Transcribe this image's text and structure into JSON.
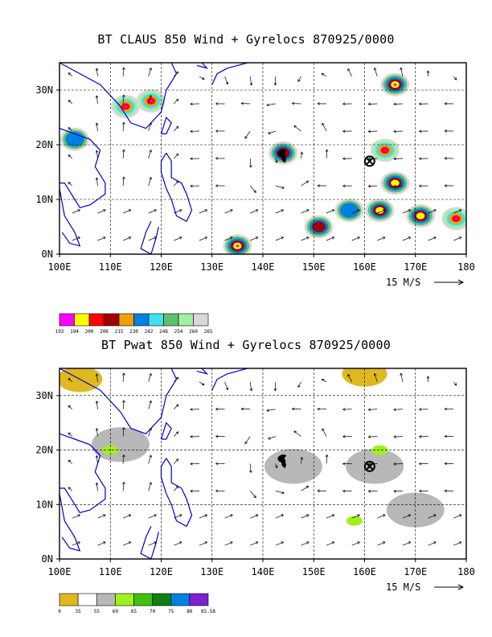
{
  "chart_data": [
    {
      "type": "heatmap",
      "title": "BT CLAUS 850 Wind + Gyrelocs 870925/0000",
      "x_ticks": [
        "100E",
        "110E",
        "120E",
        "130E",
        "140E",
        "150E",
        "160E",
        "170E",
        "180"
      ],
      "y_ticks": [
        "0N",
        "10N",
        "20N",
        "30N"
      ],
      "xlim": [
        100,
        180
      ],
      "ylim": [
        0,
        35
      ],
      "grid": true,
      "vector_scale_label": "15 M/S",
      "gyre_locations": [
        {
          "symbol": "cyclone",
          "lon": 144,
          "lat": 18
        },
        {
          "symbol": "cross-circle",
          "lon": 161,
          "lat": 17
        }
      ],
      "colorbar": {
        "labels": [
          "193",
          "194",
          "200",
          "206",
          "215",
          "230",
          "242",
          "248",
          "254",
          "260",
          "265"
        ],
        "colors": [
          "#ff00ff",
          "#ffff00",
          "#ff0000",
          "#a00000",
          "#f0a000",
          "#0080e0",
          "#40e0f0",
          "#60c070",
          "#a0f0a0",
          "#d8d8d8"
        ]
      },
      "regions": [
        {
          "lon": 103,
          "lat": 21,
          "level": 2
        },
        {
          "lon": 144,
          "lat": 18.5,
          "level": 3
        },
        {
          "lon": 164,
          "lat": 19,
          "level": 6
        },
        {
          "lon": 157,
          "lat": 8,
          "level": 2
        },
        {
          "lon": 163,
          "lat": 8,
          "level": 4
        },
        {
          "lon": 171,
          "lat": 7,
          "level": 4
        },
        {
          "lon": 151,
          "lat": 5,
          "level": 3
        },
        {
          "lon": 166,
          "lat": 13,
          "level": 4
        },
        {
          "lon": 113,
          "lat": 27,
          "level": 7
        },
        {
          "lon": 118,
          "lat": 28,
          "level": 8
        },
        {
          "lon": 166,
          "lat": 31,
          "level": 5
        },
        {
          "lon": 135,
          "lat": 1.5,
          "level": 5
        },
        {
          "lon": 178,
          "lat": 6.5,
          "level": 6
        }
      ]
    },
    {
      "type": "heatmap",
      "title": "BT Pwat 850 Wind + Gyrelocs 870925/0000",
      "x_ticks": [
        "100E",
        "110E",
        "120E",
        "130E",
        "140E",
        "150E",
        "160E",
        "170E",
        "180"
      ],
      "y_ticks": [
        "0N",
        "10N",
        "20N",
        "30N"
      ],
      "xlim": [
        100,
        180
      ],
      "ylim": [
        0,
        35
      ],
      "grid": true,
      "vector_scale_label": "15 M/S",
      "gyre_locations": [
        {
          "symbol": "cyclone",
          "lon": 144,
          "lat": 18
        },
        {
          "symbol": "cross-circle",
          "lon": 161,
          "lat": 17
        }
      ],
      "colorbar": {
        "labels": [
          "0",
          "35",
          "55",
          "60",
          "65",
          "70",
          "75",
          "80",
          "85.58"
        ],
        "colors": [
          "#e0b820",
          "#ffffff",
          "#b8b8b8",
          "#a0f020",
          "#40c010",
          "#108010",
          "#0080e0",
          "#8020d0"
        ]
      },
      "regions": [
        {
          "lon": 112,
          "lat": 21,
          "level": 2
        },
        {
          "lon": 110,
          "lat": 20,
          "level": 3
        },
        {
          "lon": 146,
          "lat": 17,
          "level": 2
        },
        {
          "lon": 162,
          "lat": 17,
          "level": 2
        },
        {
          "lon": 163,
          "lat": 20,
          "level": 3
        },
        {
          "lon": 170,
          "lat": 9,
          "level": 2
        },
        {
          "lon": 158,
          "lat": 7,
          "level": 3
        },
        {
          "lon": 104,
          "lat": 33,
          "level": 0
        },
        {
          "lon": 160,
          "lat": 34,
          "level": 0
        }
      ]
    }
  ]
}
